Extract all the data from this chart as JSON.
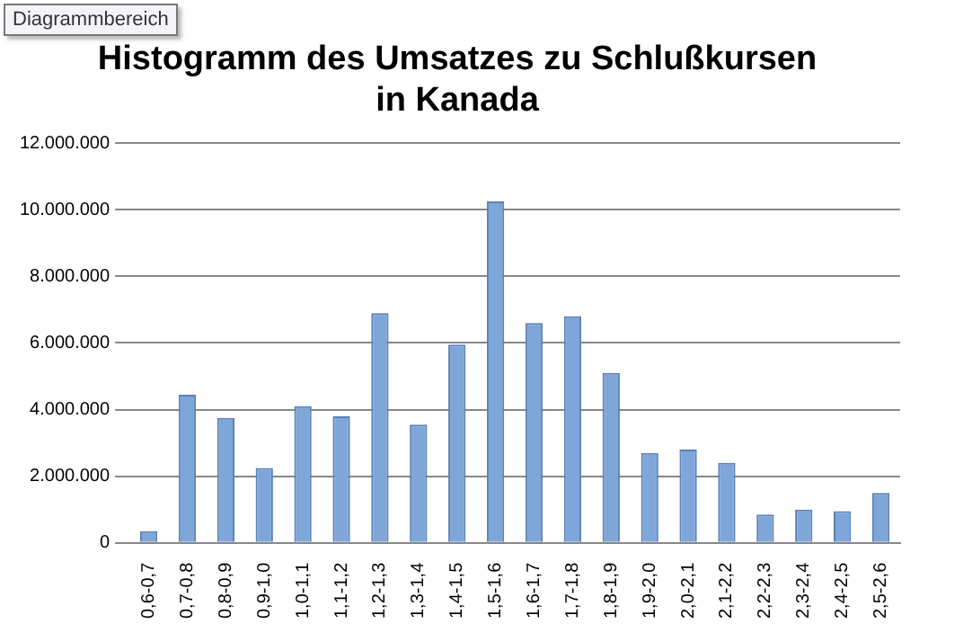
{
  "chart_data": {
    "type": "bar",
    "title": "Histogramm des Umsatzes zu Schlußkursen in Kanada",
    "annotations": [
      "Diagrammbereich"
    ],
    "categories": [
      "0,6-0,7",
      "0,7-0,8",
      "0,8-0,9",
      "0,9-1,0",
      "1,0-1,1",
      "1,1-1,2",
      "1,2-1,3",
      "1,3-1,4",
      "1,4-1,5",
      "1,5-1,6",
      "1,6-1,7",
      "1,7-1,8",
      "1,8-1,9",
      "1,9-2,0",
      "2,0-2,1",
      "2,1-2,2",
      "2,2-2,3",
      "2,3-2,4",
      "2,4-2,5",
      "2,5-2,6"
    ],
    "values": [
      350000,
      4450000,
      3750000,
      2250000,
      4100000,
      3800000,
      6900000,
      3550000,
      5950000,
      10250000,
      6600000,
      6800000,
      5100000,
      2700000,
      2800000,
      2400000,
      850000,
      1000000,
      950000,
      1500000
    ],
    "color": "#7fa6d9",
    "ylim": [
      0,
      12000000
    ],
    "yticks": [
      0,
      {
        "value": 2000000,
        "label": "2.000.000"
      },
      {
        "value": 4000000,
        "label": "4.000.000"
      },
      {
        "value": 6000000,
        "label": "6.000.000"
      },
      {
        "value": 8000000,
        "label": "8.000.000"
      },
      {
        "value": 10000000,
        "label": "10.000.000"
      },
      {
        "value": 12000000,
        "label": "12.000.000"
      }
    ],
    "grid": "y",
    "legend": false
  }
}
